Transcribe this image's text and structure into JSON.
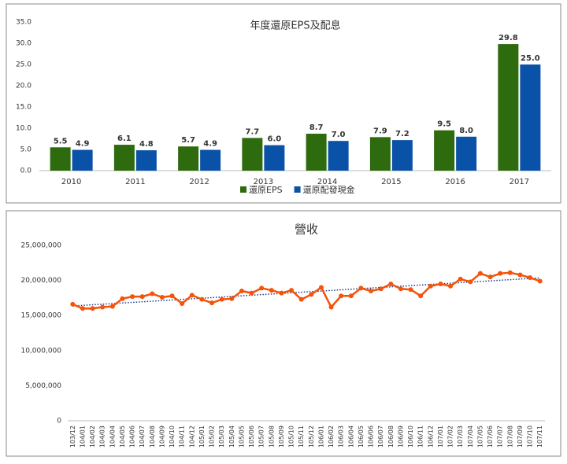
{
  "chart_data": [
    {
      "type": "bar",
      "title": "年度還原EPS及配息",
      "categories": [
        "2010",
        "2011",
        "2012",
        "2013",
        "2014",
        "2015",
        "2016",
        "2017"
      ],
      "series": [
        {
          "name": "還原EPS",
          "color": "#2e6b0f",
          "values": [
            5.5,
            6.1,
            5.7,
            7.7,
            8.7,
            7.9,
            9.5,
            29.8
          ],
          "value_labels": [
            "5.5",
            "6.1",
            "5.7",
            "7.7",
            "8.7",
            "7.9",
            "9.5",
            "29.8"
          ]
        },
        {
          "name": "還原配發現金",
          "color": "#0a52a8",
          "values": [
            4.9,
            4.8,
            4.9,
            6.0,
            7.0,
            7.2,
            8.0,
            25.0
          ],
          "value_labels": [
            "4.9",
            "4.8",
            "4.9",
            "6.0",
            "7.0",
            "7.2",
            "8.0",
            "25.0"
          ]
        }
      ],
      "ylim": [
        0,
        35
      ],
      "yticks": [
        {
          "value": 0,
          "label": "0.0"
        },
        {
          "value": 5,
          "label": "5.0"
        },
        {
          "value": 10,
          "label": "10.0"
        },
        {
          "value": 15,
          "label": "15.0"
        },
        {
          "value": 20,
          "label": "20.0"
        },
        {
          "value": 25,
          "label": "25.0"
        },
        {
          "value": 30,
          "label": "30.0"
        },
        {
          "value": 35,
          "label": "35.0"
        }
      ],
      "grid": false,
      "legend": "bottom"
    },
    {
      "type": "line",
      "title": "營收",
      "categories": [
        "103/12",
        "104/01",
        "104/02",
        "104/03",
        "104/04",
        "104/05",
        "104/06",
        "104/07",
        "104/08",
        "104/09",
        "104/10",
        "104/11",
        "104/12",
        "105/01",
        "105/02",
        "105/03",
        "105/04",
        "105/05",
        "105/06",
        "105/07",
        "105/08",
        "105/09",
        "105/10",
        "105/11",
        "105/12",
        "106/01",
        "106/02",
        "106/03",
        "106/04",
        "106/05",
        "106/06",
        "106/07",
        "106/08",
        "106/09",
        "106/10",
        "106/11",
        "106/12",
        "107/01",
        "107/02",
        "107/03",
        "107/04",
        "107/05",
        "107/06",
        "107/07",
        "107/08",
        "107/09",
        "107/10",
        "107/11"
      ],
      "color": "#f5520a",
      "values": [
        16600000,
        16000000,
        16000000,
        16200000,
        16300000,
        17400000,
        17700000,
        17700000,
        18100000,
        17600000,
        17800000,
        16700000,
        17900000,
        17300000,
        16800000,
        17300000,
        17400000,
        18500000,
        18200000,
        18900000,
        18600000,
        18200000,
        18600000,
        17300000,
        18000000,
        19000000,
        16200000,
        17800000,
        17800000,
        18900000,
        18500000,
        18800000,
        19500000,
        18800000,
        18700000,
        17800000,
        19200000,
        19500000,
        19200000,
        20200000,
        19800000,
        21000000,
        20500000,
        21000000,
        21100000,
        20800000,
        20400000,
        19900000
      ],
      "ylim": [
        0,
        25000000
      ],
      "yticks": [
        {
          "value": 0,
          "label": "0"
        },
        {
          "value": 5000000,
          "label": "5,000,000"
        },
        {
          "value": 10000000,
          "label": "10,000,000"
        },
        {
          "value": 15000000,
          "label": "15,000,000"
        },
        {
          "value": 20000000,
          "label": "20,000,000"
        },
        {
          "value": 25000000,
          "label": "25,000,000"
        }
      ],
      "grid": false,
      "trendline": true
    }
  ]
}
